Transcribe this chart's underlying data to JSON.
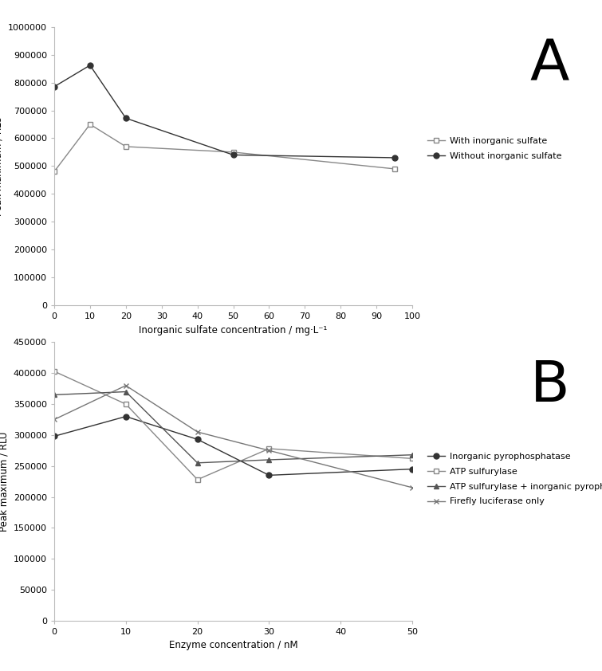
{
  "panel_A": {
    "xlabel": "Inorganic sulfate concentration / mg·L⁻¹",
    "ylabel": "Peak maximum / RLU",
    "xlim": [
      0,
      100
    ],
    "ylim": [
      0,
      1000000
    ],
    "yticks": [
      0,
      100000,
      200000,
      300000,
      400000,
      500000,
      600000,
      700000,
      800000,
      900000,
      1000000
    ],
    "xticks": [
      0,
      10,
      20,
      30,
      40,
      50,
      60,
      70,
      80,
      90,
      100
    ],
    "label_A": "A",
    "series": [
      {
        "label": "With inorganic sulfate",
        "x": [
          0,
          10,
          20,
          50,
          95
        ],
        "y": [
          480000,
          650000,
          570000,
          550000,
          490000
        ],
        "color": "#888888",
        "marker": "s",
        "marker_fill": "white",
        "linestyle": "-"
      },
      {
        "label": "Without inorganic sulfate",
        "x": [
          0,
          10,
          20,
          50,
          95
        ],
        "y": [
          785000,
          862000,
          672000,
          540000,
          530000
        ],
        "color": "#333333",
        "marker": "o",
        "marker_fill": "#333333",
        "linestyle": "-"
      }
    ]
  },
  "panel_B": {
    "xlabel": "Enzyme concentration / nM",
    "ylabel": "Peak maximum / RLU",
    "xlim": [
      0,
      50
    ],
    "ylim": [
      0,
      450000
    ],
    "yticks": [
      0,
      50000,
      100000,
      150000,
      200000,
      250000,
      300000,
      350000,
      400000,
      450000
    ],
    "xticks": [
      0,
      10,
      20,
      30,
      40,
      50
    ],
    "label_B": "B",
    "series": [
      {
        "label": "Inorganic pyrophosphatase",
        "x": [
          0,
          10,
          20,
          30,
          50
        ],
        "y": [
          298000,
          330000,
          293000,
          235000,
          245000
        ],
        "color": "#333333",
        "marker": "o",
        "marker_fill": "#333333",
        "linestyle": "-"
      },
      {
        "label": "ATP sulfurylase",
        "x": [
          0,
          10,
          20,
          30,
          50
        ],
        "y": [
          403000,
          350000,
          228000,
          278000,
          262000
        ],
        "color": "#888888",
        "marker": "s",
        "marker_fill": "white",
        "linestyle": "-"
      },
      {
        "label": "ATP sulfurylase + inorganic pyrophosphatase",
        "x": [
          0,
          10,
          20,
          30,
          50
        ],
        "y": [
          365000,
          370000,
          255000,
          260000,
          268000
        ],
        "color": "#555555",
        "marker": "^",
        "marker_fill": "#555555",
        "linestyle": "-"
      },
      {
        "label": "Firefly luciferase only",
        "x": [
          0,
          10,
          20,
          30,
          50
        ],
        "y": [
          325000,
          380000,
          305000,
          275000,
          215000
        ],
        "color": "#777777",
        "marker": "x",
        "marker_fill": "#777777",
        "linestyle": "-"
      }
    ]
  },
  "background_color": "#ffffff",
  "font_color": "#000000",
  "font_size": 8.5,
  "tick_font_size": 8,
  "label_fontsize": 52
}
